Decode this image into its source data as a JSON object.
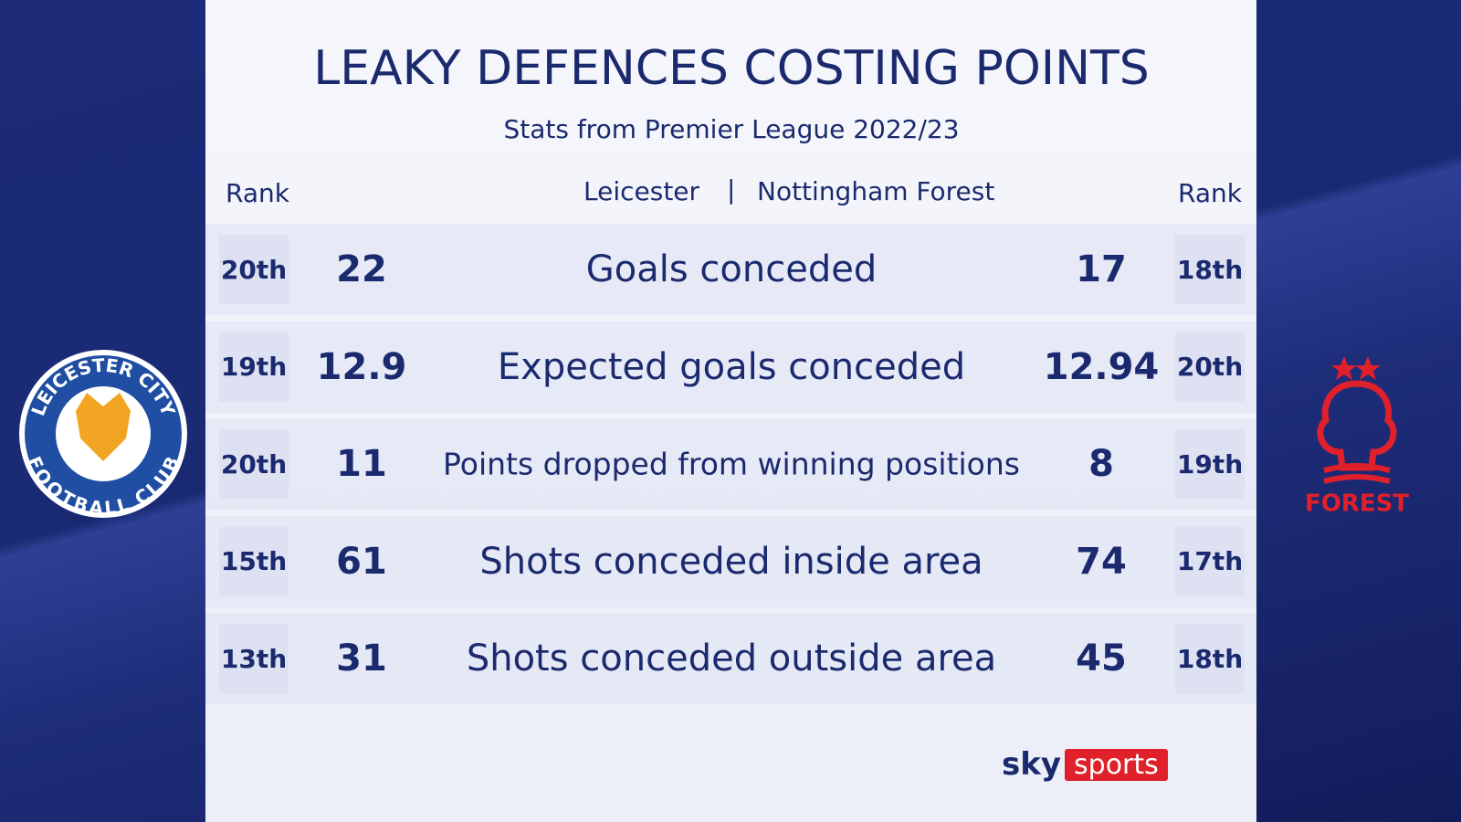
{
  "header": {
    "title": "LEAKY DEFENCES COSTING POINTS",
    "subtitle": "Stats from Premier League 2022/23"
  },
  "columns": {
    "left_rank": "Rank",
    "left_team": "Leicester",
    "separator": "|",
    "right_team": "Nottingham Forest",
    "right_rank": "Rank"
  },
  "rows": [
    {
      "left_rank": "20th",
      "left_value": 22,
      "stat": "Goals conceded",
      "right_value": 17,
      "right_rank": "18th"
    },
    {
      "left_rank": "19th",
      "left_value": 12.9,
      "stat": "Expected goals conceded",
      "right_value": 12.94,
      "right_rank": "20th"
    },
    {
      "left_rank": "20th",
      "left_value": 11,
      "stat": "Points dropped from winning positions",
      "right_value": 8,
      "right_rank": "19th"
    },
    {
      "left_rank": "15th",
      "left_value": 61,
      "stat": "Shots conceded inside area",
      "right_value": 74,
      "right_rank": "17th"
    },
    {
      "left_rank": "13th",
      "left_value": 31,
      "stat": "Shots conceded outside area",
      "right_value": 45,
      "right_rank": "18th"
    }
  ],
  "logos": {
    "left_top": "LEICESTER CITY",
    "left_bottom": "FOOTBALL CLUB",
    "right": "FOREST"
  },
  "brand": {
    "sky": "sky",
    "sports": "sports"
  }
}
